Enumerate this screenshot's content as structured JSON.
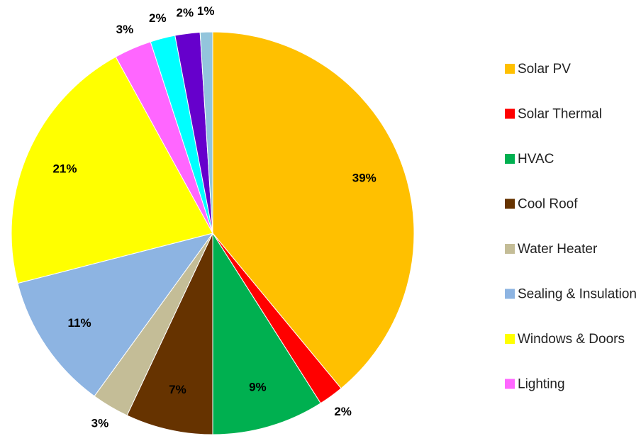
{
  "chart_data": {
    "type": "pie",
    "categories": [
      "Solar PV",
      "Solar Thermal",
      "HVAC",
      "Cool Roof",
      "Water Heater",
      "Sealing & Insulation",
      "Windows & Doors",
      "Lighting",
      null,
      null,
      null
    ],
    "values": [
      39,
      2,
      9,
      7,
      3,
      11,
      21,
      3,
      2,
      2,
      1
    ],
    "value_labels": [
      "39%",
      "2%",
      "9%",
      "7%",
      "3%",
      "11%",
      "21%",
      "3%",
      "2%",
      "2%",
      "1%"
    ],
    "colors": [
      "#FFC000",
      "#FF0000",
      "#00B050",
      "#663300",
      "#C4BD97",
      "#8DB4E2",
      "#FFFF00",
      "#FF66FF",
      "#00FFFF",
      "#6600CC",
      "#93C5DC"
    ]
  }
}
